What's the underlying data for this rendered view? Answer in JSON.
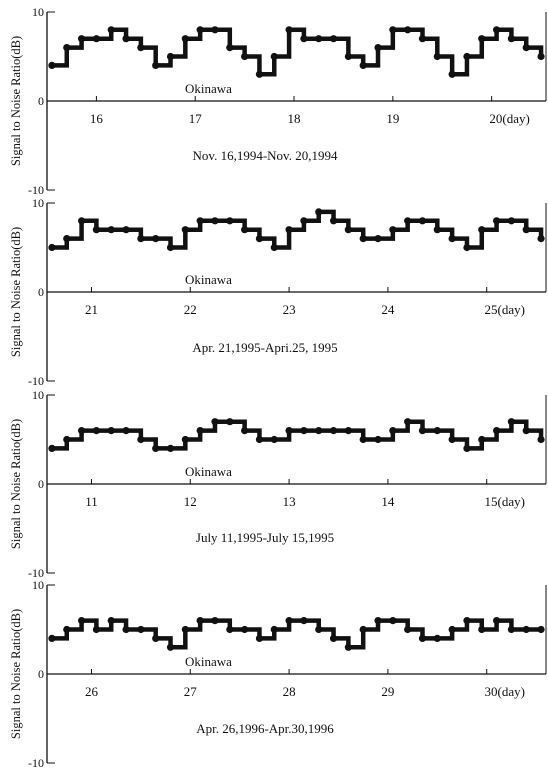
{
  "chart_data": [
    {
      "type": "scatter",
      "ylabel": "Signal to Noise Ratio(dB)",
      "ylim": [
        -10,
        10
      ],
      "yticks": [
        "10",
        "0",
        "-10"
      ],
      "xlim": [
        15.5,
        20.55
      ],
      "xticks": [
        16,
        17,
        18,
        19,
        20
      ],
      "xtick_labels": [
        "16",
        "17",
        "18",
        "19",
        "20(day)"
      ],
      "annotation": "Okinawa",
      "date_range": "Nov. 16,1994-Nov. 20,1994",
      "grid": false,
      "legend": "none",
      "series": [
        {
          "x": [
            15.55,
            15.7,
            15.85,
            16.0,
            16.15,
            16.3,
            16.45,
            16.6,
            16.75,
            16.9,
            17.05,
            17.2,
            17.35,
            17.5,
            17.65,
            17.8,
            17.95,
            18.1,
            18.25,
            18.4,
            18.55,
            18.7,
            18.85,
            19.0,
            19.15,
            19.3,
            19.45,
            19.6,
            19.75,
            19.9,
            20.05,
            20.2,
            20.35,
            20.5
          ],
          "y": [
            4,
            6,
            7,
            7,
            8,
            7,
            6,
            4,
            5,
            7,
            8,
            8,
            6,
            5,
            3,
            5,
            8,
            7,
            7,
            7,
            5,
            4,
            6,
            8,
            8,
            7,
            5,
            3,
            5,
            7,
            8,
            7,
            6,
            5
          ]
        }
      ]
    },
    {
      "type": "scatter",
      "ylabel": "Signal to Noise Ratio(dB)",
      "ylim": [
        -10,
        10
      ],
      "yticks": [
        "10",
        "0",
        "-10"
      ],
      "xlim": [
        20.55,
        25.6
      ],
      "xticks": [
        21,
        22,
        23,
        24,
        25
      ],
      "xtick_labels": [
        "21",
        "22",
        "23",
        "24",
        "25(day)"
      ],
      "annotation": "Okinawa",
      "date_range": "Apr. 21,1995-Apri.25, 1995",
      "grid": false,
      "legend": "none",
      "series": [
        {
          "x": [
            20.6,
            20.75,
            20.9,
            21.05,
            21.2,
            21.35,
            21.5,
            21.65,
            21.8,
            21.95,
            22.1,
            22.25,
            22.4,
            22.55,
            22.7,
            22.85,
            23.0,
            23.15,
            23.3,
            23.45,
            23.6,
            23.75,
            23.9,
            24.05,
            24.2,
            24.35,
            24.5,
            24.65,
            24.8,
            24.95,
            25.1,
            25.25,
            25.4,
            25.55
          ],
          "y": [
            5,
            6,
            8,
            7,
            7,
            7,
            6,
            6,
            5,
            7,
            8,
            8,
            8,
            7,
            6,
            5,
            7,
            8,
            9,
            8,
            7,
            6,
            6,
            7,
            8,
            8,
            7,
            6,
            5,
            7,
            8,
            8,
            7,
            6
          ]
        }
      ]
    },
    {
      "type": "scatter",
      "ylabel": "Signal to Noise Ratio(dB)",
      "ylim": [
        -10,
        10
      ],
      "yticks": [
        "10",
        "0",
        "-10"
      ],
      "xlim": [
        10.55,
        15.6
      ],
      "xticks": [
        11,
        12,
        13,
        14,
        15
      ],
      "xtick_labels": [
        "11",
        "12",
        "13",
        "14",
        "15(day)"
      ],
      "annotation": "Okinawa",
      "date_range": "July 11,1995-July 15,1995",
      "grid": false,
      "legend": "none",
      "series": [
        {
          "x": [
            10.6,
            10.75,
            10.9,
            11.05,
            11.2,
            11.35,
            11.5,
            11.65,
            11.8,
            11.95,
            12.1,
            12.25,
            12.4,
            12.55,
            12.7,
            12.85,
            13.0,
            13.15,
            13.3,
            13.45,
            13.6,
            13.75,
            13.9,
            14.05,
            14.2,
            14.35,
            14.5,
            14.65,
            14.8,
            14.95,
            15.1,
            15.25,
            15.4,
            15.55
          ],
          "y": [
            4,
            5,
            6,
            6,
            6,
            6,
            5,
            4,
            4,
            5,
            6,
            7,
            7,
            6,
            5,
            5,
            6,
            6,
            6,
            6,
            6,
            5,
            5,
            6,
            7,
            6,
            6,
            5,
            4,
            5,
            6,
            7,
            6,
            5
          ]
        }
      ]
    },
    {
      "type": "scatter",
      "ylabel": "Signal to Noise Ratio(dB)",
      "ylim": [
        -10,
        10
      ],
      "yticks": [
        "10",
        "0",
        "-10"
      ],
      "xlim": [
        25.55,
        30.6
      ],
      "xticks": [
        26,
        27,
        28,
        29,
        30
      ],
      "xtick_labels": [
        "26",
        "27",
        "28",
        "29",
        "30(day)"
      ],
      "annotation": "Okinawa",
      "date_range": "Apr. 26,1996-Apr.30,1996",
      "grid": false,
      "legend": "none",
      "series": [
        {
          "x": [
            25.6,
            25.75,
            25.9,
            26.05,
            26.2,
            26.35,
            26.5,
            26.65,
            26.8,
            26.95,
            27.1,
            27.25,
            27.4,
            27.55,
            27.7,
            27.85,
            28.0,
            28.15,
            28.3,
            28.45,
            28.6,
            28.75,
            28.9,
            29.05,
            29.2,
            29.35,
            29.5,
            29.65,
            29.8,
            29.95,
            30.1,
            30.25,
            30.4,
            30.55
          ],
          "y": [
            4,
            5,
            6,
            5,
            6,
            5,
            5,
            4,
            3,
            5,
            6,
            6,
            5,
            5,
            4,
            5,
            6,
            6,
            5,
            4,
            3,
            5,
            6,
            6,
            5,
            4,
            4,
            5,
            6,
            5,
            6,
            5,
            5,
            5
          ]
        }
      ]
    }
  ]
}
